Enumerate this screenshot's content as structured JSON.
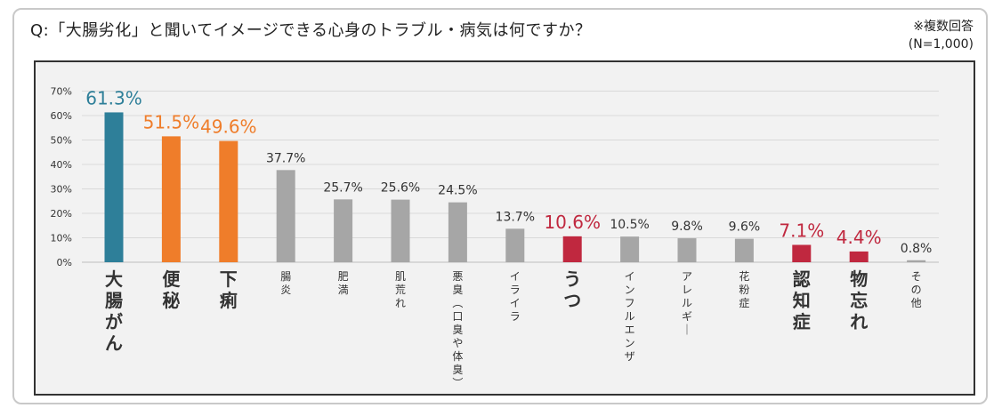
{
  "header": {
    "question": "Q:「大腸劣化」と聞いてイメージできる心身のトラブル・病気は何ですか？",
    "note_line1": "※複数回答",
    "note_line2": "(N=1,000)"
  },
  "colors": {
    "teal": "#2e7f99",
    "orange": "#ef7d2a",
    "crimson": "#c0283f",
    "gray": "#a6a6a6",
    "gray_text": "#333333",
    "plot_bg": "#f2f2f2"
  },
  "chart_data": {
    "type": "bar",
    "title": "",
    "xlabel": "",
    "ylabel": "",
    "ylim": [
      0,
      70
    ],
    "yticks": [
      "0%",
      "10%",
      "20%",
      "30%",
      "40%",
      "50%",
      "60%",
      "70%"
    ],
    "grid": true,
    "categories": [
      "大腸がん",
      "便秘",
      "下痢",
      "腸炎",
      "肥満",
      "肌荒れ",
      "悪臭（口臭や体臭）",
      "イライラ",
      "うつ",
      "インフルエンザ",
      "アレルギー",
      "花粉症",
      "認知症",
      "物忘れ",
      "その他"
    ],
    "values": [
      61.3,
      51.5,
      49.6,
      37.7,
      25.7,
      25.6,
      24.5,
      13.7,
      10.6,
      10.5,
      9.8,
      9.6,
      7.1,
      4.4,
      0.8
    ],
    "labels": [
      "61.3%",
      "51.5%",
      "49.6%",
      "37.7%",
      "25.7%",
      "25.6%",
      "24.5%",
      "13.7%",
      "10.6%",
      "10.5%",
      "9.8%",
      "9.6%",
      "7.1%",
      "4.4%",
      "0.8%"
    ],
    "bar_colors": [
      "teal",
      "orange",
      "orange",
      "gray",
      "gray",
      "gray",
      "gray",
      "gray",
      "crimson",
      "gray",
      "gray",
      "gray",
      "crimson",
      "crimson",
      "gray"
    ],
    "highlight": [
      true,
      true,
      true,
      false,
      false,
      false,
      false,
      false,
      true,
      false,
      false,
      false,
      true,
      true,
      false
    ]
  }
}
